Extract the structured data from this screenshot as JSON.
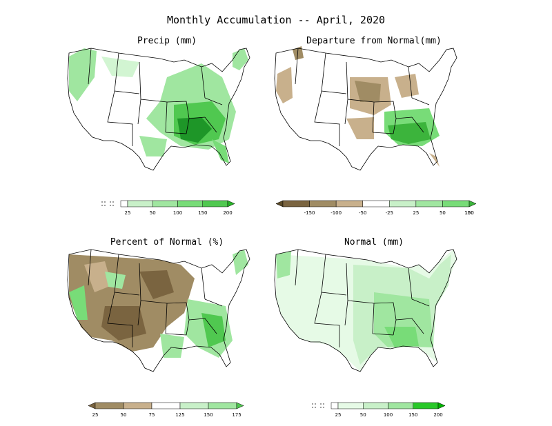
{
  "title": "Monthly Accumulation -- April, 2020",
  "panels": [
    {
      "id": "precip",
      "title": "Precip (mm)",
      "colorbar": {
        "ticks": [
          "25",
          "50",
          "100",
          "150",
          "200"
        ],
        "colors": [
          "#ffffff",
          "#c8f0c8",
          "#a0e6a0",
          "#78dc78",
          "#50c850",
          "#28b428"
        ],
        "below_symbol": "dashed-box"
      }
    },
    {
      "id": "departure",
      "title": "Departure from Normal(mm)",
      "colorbar": {
        "ticks": [
          "-150",
          "-100",
          "-50",
          "-25",
          "25",
          "50",
          "100",
          "150"
        ],
        "colors": [
          "#5a4a28",
          "#7a6440",
          "#a08c64",
          "#c8b08c",
          "#ffffff",
          "#c8f0c8",
          "#a0e6a0",
          "#78dc78",
          "#3cb43c"
        ]
      }
    },
    {
      "id": "percent",
      "title": "Percent of Normal (%)",
      "colorbar": {
        "ticks": [
          "25",
          "50",
          "75",
          "125",
          "150",
          "175"
        ],
        "colors": [
          "#7a6440",
          "#a08c64",
          "#c8b08c",
          "#ffffff",
          "#c8f0c8",
          "#a0e6a0",
          "#50c850"
        ]
      }
    },
    {
      "id": "normal",
      "title": "Normal (mm)",
      "colorbar": {
        "ticks": [
          "25",
          "50",
          "100",
          "150",
          "200"
        ],
        "colors": [
          "#ffffff",
          "#e6fae6",
          "#c8f0c8",
          "#a0e6a0",
          "#28c828",
          "#00b400"
        ],
        "below_symbol": "dashed-box"
      }
    }
  ],
  "colors": {
    "wet_dark": "#1e9628",
    "wet": "#50c850",
    "wet_light": "#a0e6a0",
    "wet_pale": "#d2f5d2",
    "dry_dark": "#5a4a28",
    "dry": "#a08c64",
    "dry_light": "#c8b08c",
    "outline": "#000000"
  }
}
